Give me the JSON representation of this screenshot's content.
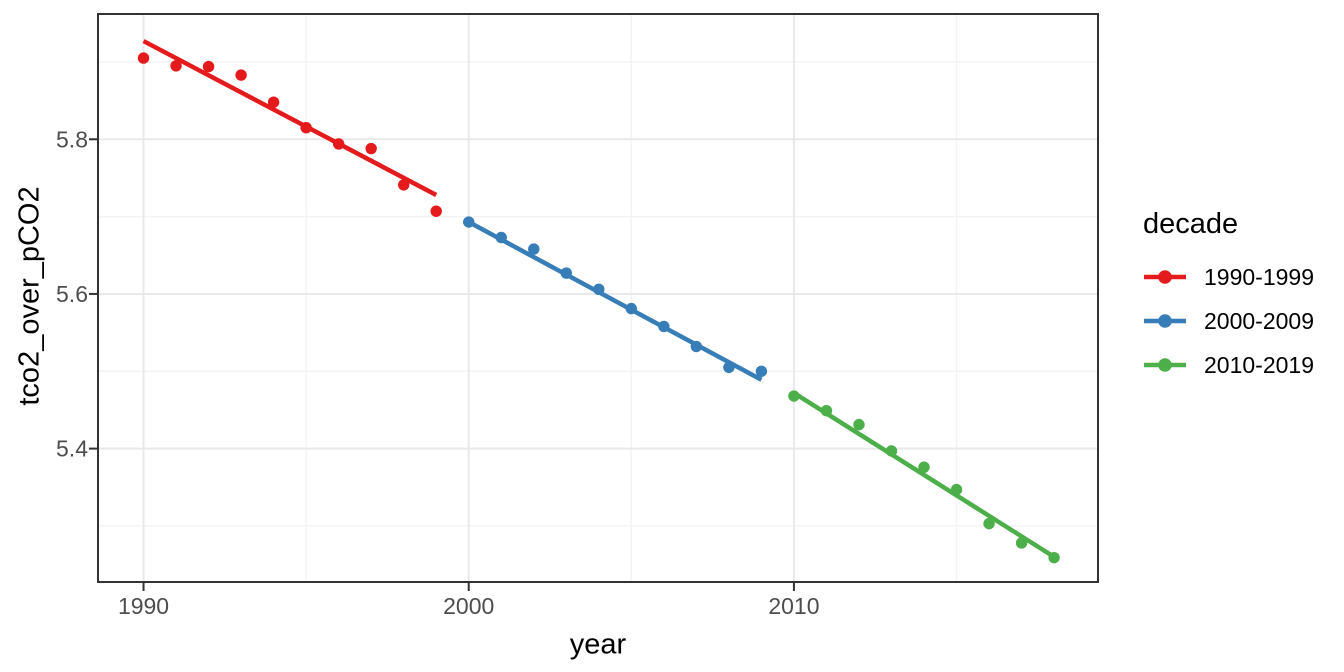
{
  "figure": {
    "background": "#FFFFFF",
    "panel_background": "#FFFFFF",
    "panel_border_color": "#333333",
    "grid_major_color": "#E9E9E9",
    "grid_minor_color": "#F3F3F3",
    "tick_mark_color": "#333333",
    "tick_label_color": "#4D4D4D",
    "axis_title_color": "#000000"
  },
  "chart_data": {
    "type": "scatter",
    "title": "",
    "xlabel": "year",
    "ylabel": "tco2_over_pCO2",
    "xlim": [
      1988.6,
      2019.35
    ],
    "ylim": [
      5.2275,
      5.962
    ],
    "x_major_ticks": [
      1990,
      2000,
      2010
    ],
    "x_minor_ticks": [
      1995,
      2005,
      2015
    ],
    "y_major_ticks": [
      5.4,
      5.6,
      5.8
    ],
    "y_minor_ticks": [
      5.3,
      5.5,
      5.7,
      5.9
    ],
    "grid": "major+minor",
    "legend": {
      "title": "decade",
      "position": "right"
    },
    "series": [
      {
        "name": "1990-1999",
        "color": "#E41A1C",
        "x": [
          1990,
          1991,
          1992,
          1993,
          1994,
          1995,
          1996,
          1997,
          1998,
          1999
        ],
        "y": [
          5.905,
          5.895,
          5.894,
          5.883,
          5.848,
          5.815,
          5.794,
          5.788,
          5.741,
          5.707
        ],
        "trend": {
          "x": [
            1990,
            1999
          ],
          "y": [
            5.927,
            5.728
          ]
        }
      },
      {
        "name": "2000-2009",
        "color": "#377EB8",
        "x": [
          2000,
          2001,
          2002,
          2003,
          2004,
          2005,
          2006,
          2007,
          2008,
          2009
        ],
        "y": [
          5.693,
          5.673,
          5.658,
          5.627,
          5.606,
          5.581,
          5.558,
          5.532,
          5.505,
          5.5
        ],
        "trend": {
          "x": [
            2000,
            2009
          ],
          "y": [
            5.693,
            5.489
          ]
        }
      },
      {
        "name": "2010-2019",
        "color": "#4DAF4A",
        "x": [
          2010,
          2011,
          2012,
          2013,
          2014,
          2015,
          2016,
          2017,
          2018
        ],
        "y": [
          5.468,
          5.449,
          5.431,
          5.397,
          5.376,
          5.347,
          5.303,
          5.278,
          5.259
        ],
        "trend": {
          "x": [
            2010,
            2018
          ],
          "y": [
            5.472,
            5.26
          ]
        }
      }
    ]
  }
}
